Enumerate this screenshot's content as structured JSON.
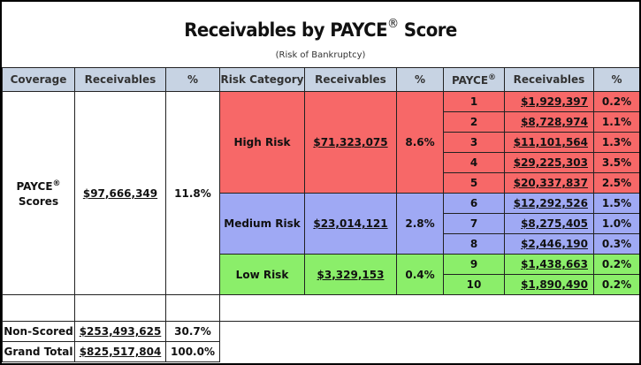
{
  "title": "Receivables by PAYCE",
  "title_mark": "®",
  "title_suffix": "Score",
  "subtitle": "(Risk of Bankruptcy)",
  "headers": {
    "coverage": "Coverage",
    "receivables": "Receivables",
    "pct": "%",
    "risk_category": "Risk Category",
    "risk_receivables": "Receivables",
    "risk_pct": "%",
    "payce": "PAYCE",
    "payce_mark": "®",
    "score_receivables": "Receivables",
    "score_pct": "%"
  },
  "coverage": {
    "label": "PAYCE",
    "label_mark": "®",
    "label_line2": "Scores",
    "receivables": "$97,666,349",
    "pct": "11.8%"
  },
  "risks": [
    {
      "category": "High Risk",
      "receivables": "$71,323,075",
      "pct": "8.6%",
      "color": "#f76868"
    },
    {
      "category": "Medium Risk",
      "receivables": "$23,014,121",
      "pct": "2.8%",
      "color": "#9fa9f4"
    },
    {
      "category": "Low Risk",
      "receivables": "$3,329,153",
      "pct": "0.4%",
      "color": "#8bee6a"
    }
  ],
  "scores": [
    {
      "score": "1",
      "receivables": "$1,929,397",
      "pct": "0.2%"
    },
    {
      "score": "2",
      "receivables": "$8,728,974",
      "pct": "1.1%"
    },
    {
      "score": "3",
      "receivables": "$11,101,564",
      "pct": "1.3%"
    },
    {
      "score": "4",
      "receivables": "$29,225,303",
      "pct": "3.5%"
    },
    {
      "score": "5",
      "receivables": "$20,337,837",
      "pct": "2.5%"
    },
    {
      "score": "6",
      "receivables": "$12,292,526",
      "pct": "1.5%"
    },
    {
      "score": "7",
      "receivables": "$8,275,405",
      "pct": "1.0%"
    },
    {
      "score": "8",
      "receivables": "$2,446,190",
      "pct": "0.3%"
    },
    {
      "score": "9",
      "receivables": "$1,438,663",
      "pct": "0.2%"
    },
    {
      "score": "10",
      "receivables": "$1,890,490",
      "pct": "0.2%"
    }
  ],
  "non_scored": {
    "label": "Non-Scored",
    "receivables": "$253,493,625",
    "pct": "30.7%"
  },
  "grand_total": {
    "label": "Grand Total",
    "receivables": "$825,517,804",
    "pct": "100.0%"
  }
}
